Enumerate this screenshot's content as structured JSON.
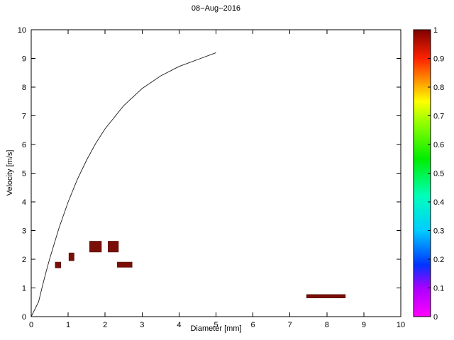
{
  "figure": {
    "background": "#ffffff",
    "axis_color": "#000000"
  },
  "chart_data": {
    "type": "scatter",
    "title": "08−Aug−2016",
    "xlabel": "Diameter [mm]",
    "ylabel": "Velocity [m/s]",
    "xlim": [
      0,
      10
    ],
    "ylim": [
      0,
      10
    ],
    "grid": false,
    "x_ticks": [
      0,
      1,
      2,
      3,
      4,
      5,
      6,
      7,
      8,
      9,
      10
    ],
    "y_ticks": [
      0,
      1,
      2,
      3,
      4,
      5,
      6,
      7,
      8,
      9,
      10
    ],
    "curve": {
      "name": "terminal-velocity-curve",
      "color": "#1a1a1a",
      "points": [
        [
          0,
          0
        ],
        [
          0.2,
          0.52
        ],
        [
          0.3,
          1.05
        ],
        [
          0.4,
          1.55
        ],
        [
          0.5,
          2.02
        ],
        [
          0.75,
          3.08
        ],
        [
          1.0,
          4.0
        ],
        [
          1.25,
          4.79
        ],
        [
          1.5,
          5.46
        ],
        [
          1.75,
          6.05
        ],
        [
          2.0,
          6.55
        ],
        [
          2.5,
          7.35
        ],
        [
          3.0,
          7.95
        ],
        [
          3.5,
          8.39
        ],
        [
          4.0,
          8.72
        ],
        [
          4.5,
          8.96
        ],
        [
          5.0,
          9.2
        ]
      ]
    },
    "patches": [
      {
        "x": 0.65,
        "y": 1.7,
        "w": 0.15,
        "h": 0.2,
        "value": 1
      },
      {
        "x": 1.02,
        "y": 1.95,
        "w": 0.14,
        "h": 0.27,
        "value": 1
      },
      {
        "x": 1.58,
        "y": 2.25,
        "w": 0.32,
        "h": 0.38,
        "value": 1
      },
      {
        "x": 2.08,
        "y": 2.25,
        "w": 0.28,
        "h": 0.38,
        "value": 1
      },
      {
        "x": 2.33,
        "y": 1.72,
        "w": 0.4,
        "h": 0.18,
        "value": 1
      },
      {
        "x": 7.45,
        "y": 0.65,
        "w": 1.05,
        "h": 0.12,
        "value": 1
      }
    ],
    "patch_color": "#7a0f08",
    "patch_edge_color": "#4d0a04",
    "colorbar": {
      "min": 0,
      "max": 1,
      "ticks": [
        0,
        0.1,
        0.2,
        0.3,
        0.4,
        0.5,
        0.6,
        0.7,
        0.8,
        0.9,
        1
      ],
      "tick_labels": [
        "0",
        "0.1",
        "0.2",
        "0.3",
        "0.4",
        "0.5",
        "0.6",
        "0.7",
        "0.8",
        "0.9",
        "1"
      ],
      "stops": [
        {
          "pos": 0.0,
          "color": "#ff00ff"
        },
        {
          "pos": 0.1,
          "color": "#aa00ff"
        },
        {
          "pos": 0.18,
          "color": "#0033ff"
        },
        {
          "pos": 0.3,
          "color": "#00ccff"
        },
        {
          "pos": 0.42,
          "color": "#00ffbb"
        },
        {
          "pos": 0.55,
          "color": "#00ee00"
        },
        {
          "pos": 0.68,
          "color": "#99ff00"
        },
        {
          "pos": 0.75,
          "color": "#ffff00"
        },
        {
          "pos": 0.83,
          "color": "#ff8800"
        },
        {
          "pos": 0.9,
          "color": "#ff2200"
        },
        {
          "pos": 1.0,
          "color": "#7f0000"
        }
      ]
    }
  }
}
